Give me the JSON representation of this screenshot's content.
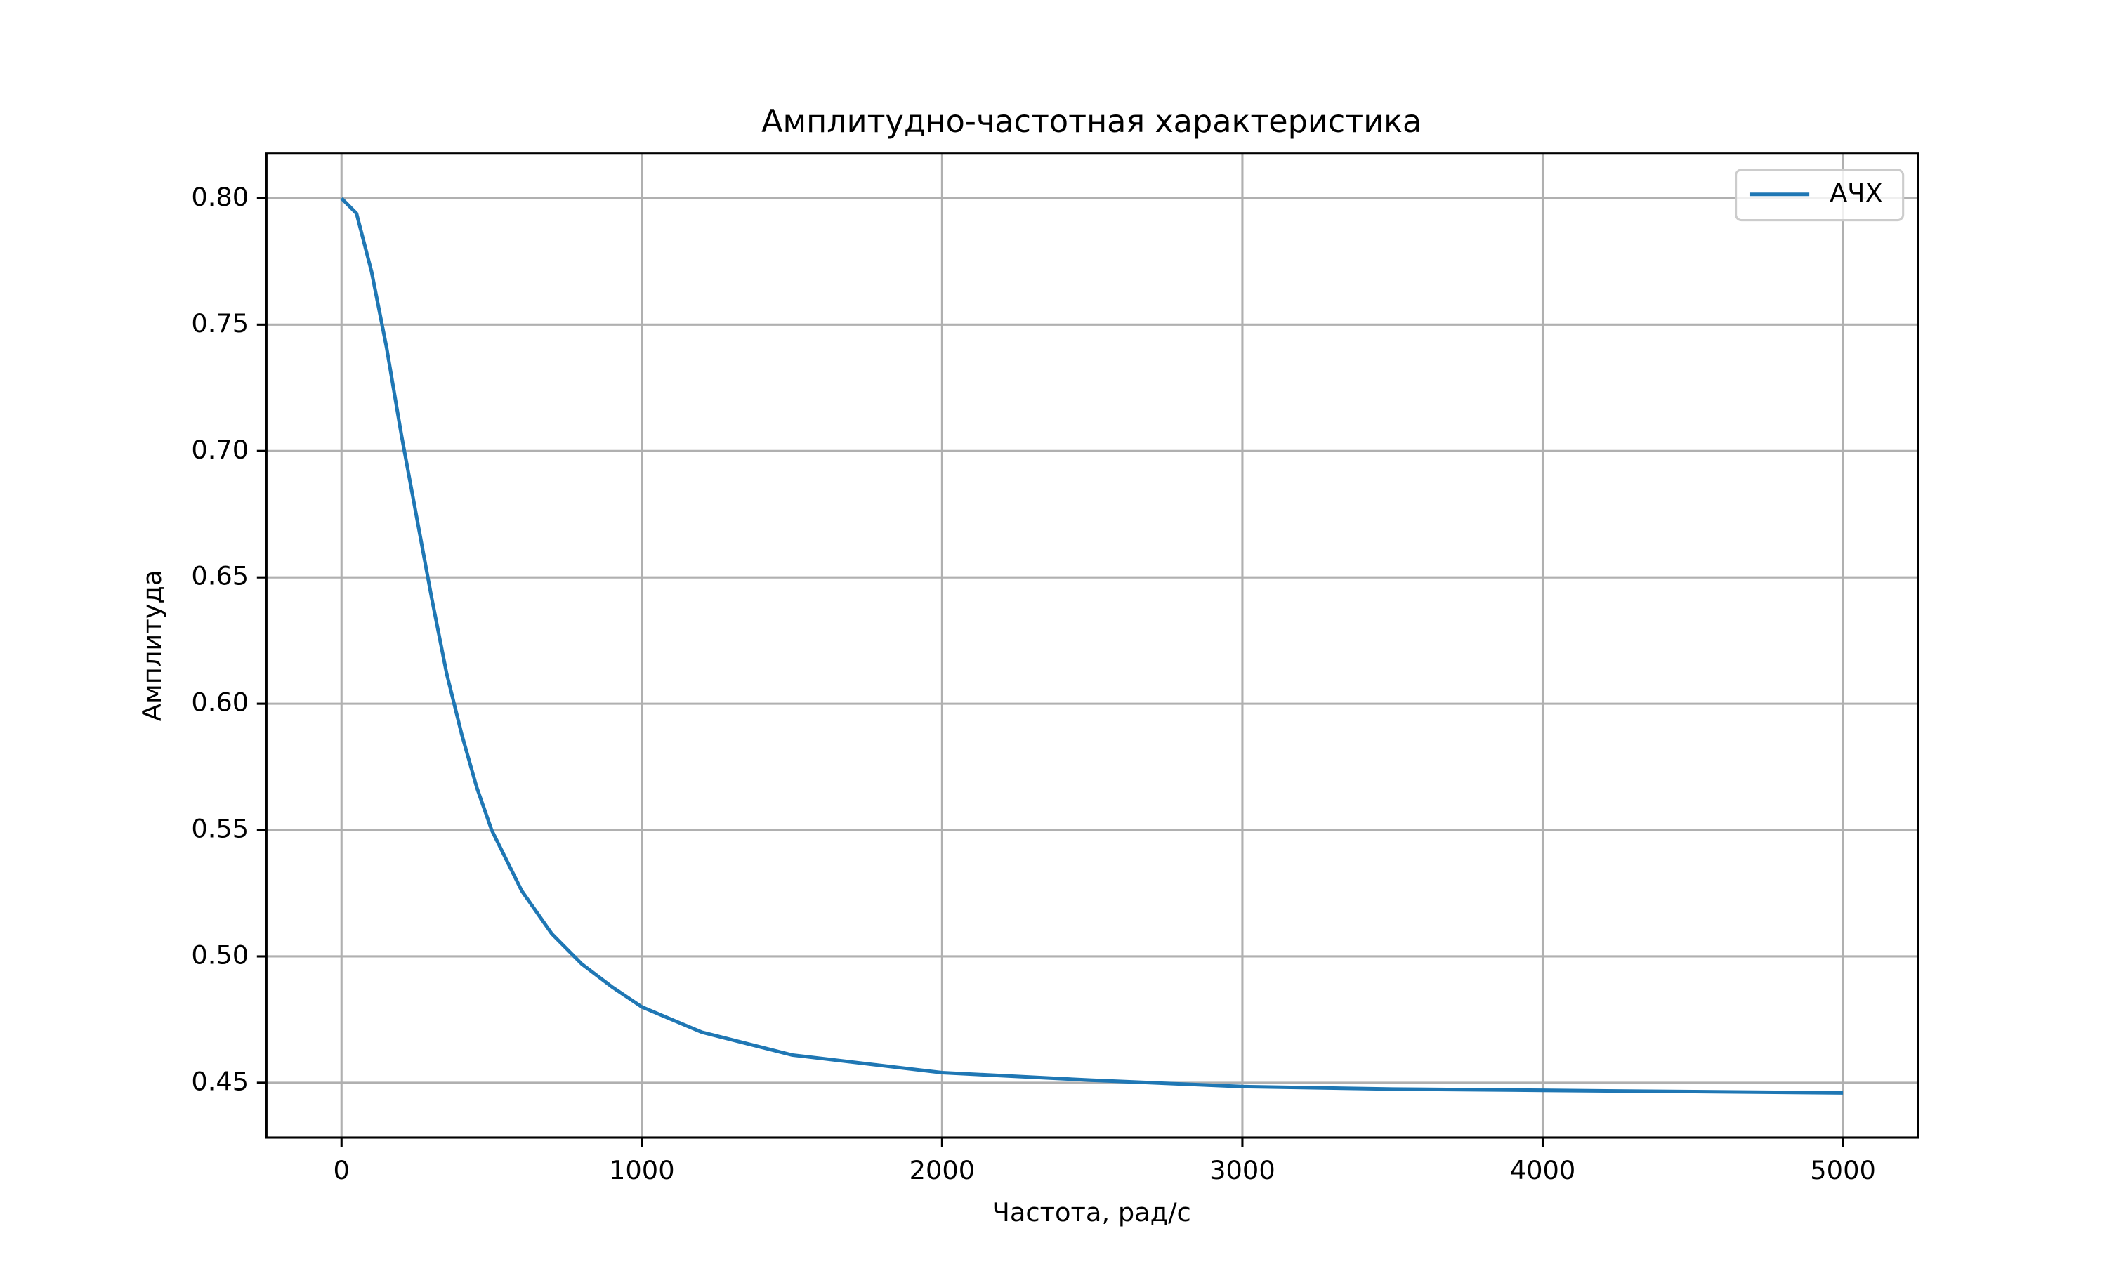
{
  "chart_data": {
    "type": "line",
    "title": "Амплитудно-частотная характеристика",
    "xlabel": "Частота, рад/с",
    "ylabel": "Амплитуда",
    "x": [
      0,
      50,
      100,
      150,
      200,
      250,
      300,
      350,
      400,
      450,
      500,
      600,
      700,
      800,
      900,
      1000,
      1200,
      1500,
      2000,
      2500,
      3000,
      3500,
      4000,
      4500,
      5000
    ],
    "series": [
      {
        "name": "АЧХ",
        "color": "#1f77b4",
        "values": [
          0.8,
          0.794,
          0.771,
          0.741,
          0.706,
          0.674,
          0.642,
          0.612,
          0.588,
          0.567,
          0.55,
          0.526,
          0.509,
          0.497,
          0.488,
          0.48,
          0.47,
          0.461,
          0.454,
          0.451,
          0.4485,
          0.4475,
          0.447,
          0.4465,
          0.446
        ]
      }
    ],
    "xlim": [
      -250,
      5250
    ],
    "ylim": [
      0.4283,
      0.8177
    ],
    "xticks": [
      0,
      1000,
      2000,
      3000,
      4000,
      5000
    ],
    "yticks": [
      0.45,
      {
        "value": 0.5,
        "label": "0.50"
      },
      0.55,
      {
        "value": 0.6,
        "label": "0.60"
      },
      0.65,
      {
        "value": 0.7,
        "label": "0.70"
      },
      0.75,
      {
        "value": 0.8,
        "label": "0.80"
      }
    ],
    "grid": true,
    "legend": "upper right"
  }
}
